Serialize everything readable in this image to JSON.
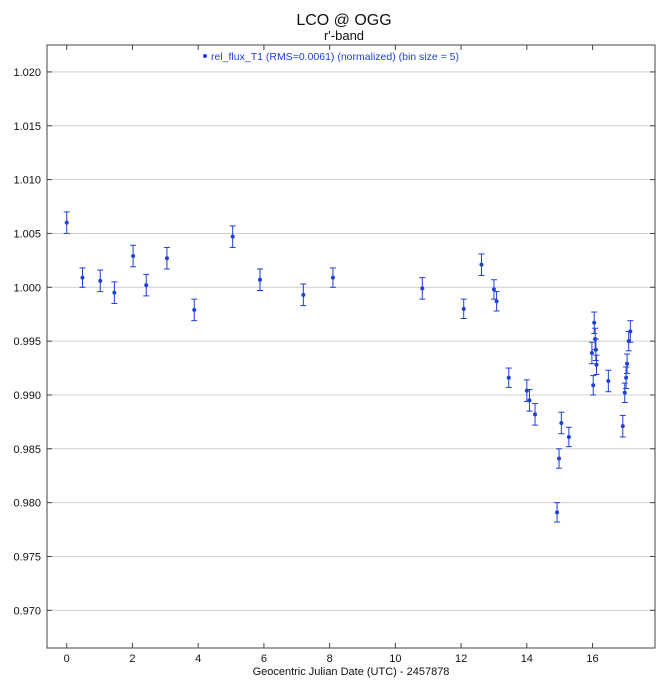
{
  "chart_data": {
    "type": "scatter",
    "title": "LCO @ OGG",
    "subtitle": "r'-band",
    "xlabel": "Geocentric Julian Date (UTC) - 2457878",
    "ylabel": "",
    "xlim": [
      -0.6,
      17.9
    ],
    "ylim": [
      0.9665,
      1.0225
    ],
    "x_ticks": [
      0,
      2,
      4,
      6,
      8,
      10,
      12,
      14,
      16
    ],
    "y_ticks": [
      0.97,
      0.975,
      0.98,
      0.985,
      0.99,
      0.995,
      1.0,
      1.005,
      1.01,
      1.015,
      1.02
    ],
    "grid": "horizontal",
    "legend_position": "top-center",
    "colors": {
      "series": "#1f3fd6",
      "grid": "#cfcfcf",
      "axis": "#444444"
    },
    "series": [
      {
        "name": "rel_flux_T1 (RMS=0.0061) (normalized) (bin size = 5)",
        "marker": "dot-with-errorbar",
        "x": [
          0.0,
          0.48,
          1.02,
          1.45,
          2.02,
          2.42,
          3.05,
          3.88,
          5.05,
          5.88,
          7.2,
          8.1,
          10.82,
          12.08,
          12.62,
          13.0,
          13.08,
          13.45,
          14.0,
          14.08,
          14.25,
          14.92,
          14.98,
          15.05,
          15.28,
          15.98,
          16.02,
          16.05,
          16.08,
          16.1,
          16.12,
          16.48,
          16.92,
          16.98,
          17.02,
          17.05,
          17.1,
          17.15
        ],
        "y": [
          1.006,
          1.0009,
          1.0006,
          0.9995,
          1.0029,
          1.0002,
          1.0027,
          0.9979,
          1.0047,
          1.0007,
          0.9993,
          1.0009,
          0.9999,
          0.998,
          1.0021,
          0.9998,
          0.9987,
          0.9916,
          0.9904,
          0.9895,
          0.9882,
          0.9791,
          0.9841,
          0.9874,
          0.9861,
          0.9939,
          0.9909,
          0.9967,
          0.9952,
          0.9942,
          0.9928,
          0.9913,
          0.9871,
          0.9902,
          0.9916,
          0.9929,
          0.995,
          0.9959
        ],
        "err": [
          0.001,
          0.0009,
          0.001,
          0.001,
          0.001,
          0.001,
          0.001,
          0.001,
          0.001,
          0.001,
          0.001,
          0.0009,
          0.001,
          0.0009,
          0.001,
          0.0009,
          0.0009,
          0.0009,
          0.001,
          0.001,
          0.001,
          0.0009,
          0.0009,
          0.001,
          0.0009,
          0.001,
          0.0009,
          0.001,
          0.001,
          0.001,
          0.0009,
          0.001,
          0.001,
          0.0009,
          0.001,
          0.0009,
          0.0009,
          0.001
        ]
      }
    ]
  }
}
